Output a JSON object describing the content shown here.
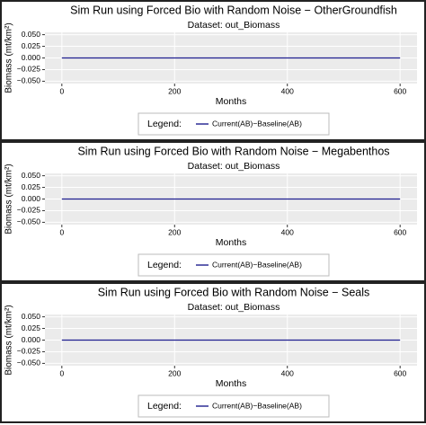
{
  "chart_data": [
    {
      "type": "line",
      "title": "Sim Run using Forced Bio with Random Noise − OtherGroundfish",
      "subtitle": "Dataset: out_Biomass",
      "x_label": "Months",
      "y_label": "Biomass (mt/km²)",
      "legend_title": "Legend:",
      "x": [
        0,
        600
      ],
      "series": [
        {
          "name": "Current(AB)−Baseline(AB)",
          "color": "#1f1f8f",
          "values": [
            0,
            0
          ]
        }
      ],
      "xlim": [
        -30,
        630
      ],
      "xticks": [
        0,
        200,
        400,
        600
      ],
      "ylim": [
        -0.055,
        0.055
      ],
      "yticks": [
        {
          "value": -0.05,
          "label": "−0.050"
        },
        {
          "value": -0.025,
          "label": "−0.025"
        },
        {
          "value": 0,
          "label": "0.000"
        },
        {
          "value": 0.025,
          "label": "0.025"
        },
        {
          "value": 0.05,
          "label": "0.050"
        }
      ],
      "grid": true,
      "legend_position": "bottom"
    },
    {
      "type": "line",
      "title": "Sim Run using Forced Bio with Random Noise − Megabenthos",
      "subtitle": "Dataset: out_Biomass",
      "x_label": "Months",
      "y_label": "Biomass (mt/km²)",
      "legend_title": "Legend:",
      "x": [
        0,
        600
      ],
      "series": [
        {
          "name": "Current(AB)−Baseline(AB)",
          "color": "#1f1f8f",
          "values": [
            0,
            0
          ]
        }
      ],
      "xlim": [
        -30,
        630
      ],
      "xticks": [
        0,
        200,
        400,
        600
      ],
      "ylim": [
        -0.055,
        0.055
      ],
      "yticks": [
        {
          "value": -0.05,
          "label": "−0.050"
        },
        {
          "value": -0.025,
          "label": "−0.025"
        },
        {
          "value": 0,
          "label": "0.000"
        },
        {
          "value": 0.025,
          "label": "0.025"
        },
        {
          "value": 0.05,
          "label": "0.050"
        }
      ],
      "grid": true,
      "legend_position": "bottom"
    },
    {
      "type": "line",
      "title": "Sim Run using Forced Bio with Random Noise − Seals",
      "subtitle": "Dataset: out_Biomass",
      "x_label": "Months",
      "y_label": "Biomass (mt/km²)",
      "legend_title": "Legend:",
      "x": [
        0,
        600
      ],
      "series": [
        {
          "name": "Current(AB)−Baseline(AB)",
          "color": "#1f1f8f",
          "values": [
            0,
            0
          ]
        }
      ],
      "xlim": [
        -30,
        630
      ],
      "xticks": [
        0,
        200,
        400,
        600
      ],
      "ylim": [
        -0.055,
        0.055
      ],
      "yticks": [
        {
          "value": -0.05,
          "label": "−0.050"
        },
        {
          "value": -0.025,
          "label": "−0.025"
        },
        {
          "value": 0,
          "label": "0.000"
        },
        {
          "value": 0.025,
          "label": "0.025"
        },
        {
          "value": 0.05,
          "label": "0.050"
        }
      ],
      "grid": true,
      "legend_position": "bottom"
    }
  ]
}
